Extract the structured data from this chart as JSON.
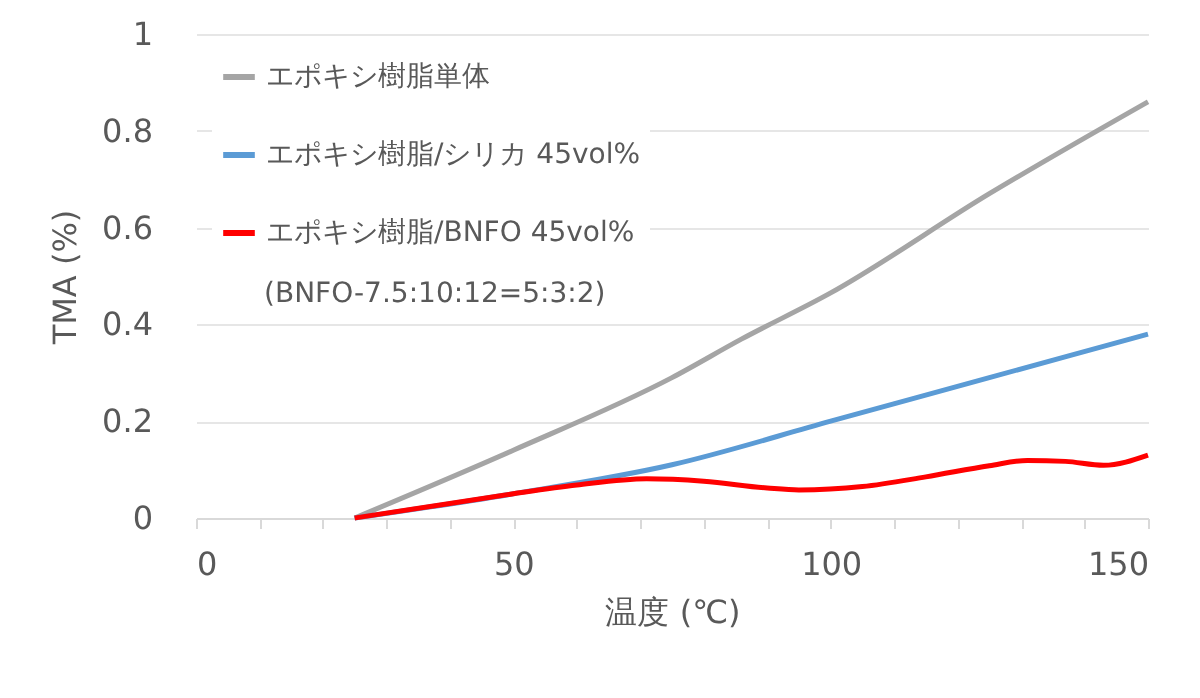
{
  "chart_data": {
    "type": "line",
    "xlabel": "温度 (℃)",
    "ylabel": "TMA (%)",
    "xlim": [
      0,
      150
    ],
    "ylim": [
      0,
      1
    ],
    "xticks": [
      0,
      {
        "value": 10,
        "label": null
      },
      {
        "value": 20,
        "label": null
      },
      {
        "value": 30,
        "label": null
      },
      {
        "value": 40,
        "label": null
      },
      50,
      {
        "value": 60,
        "label": null
      },
      {
        "value": 70,
        "label": null
      },
      {
        "value": 80,
        "label": null
      },
      {
        "value": 90,
        "label": null
      },
      100,
      {
        "value": 110,
        "label": null
      },
      {
        "value": 120,
        "label": null
      },
      {
        "value": 130,
        "label": null
      },
      {
        "value": 140,
        "label": null
      },
      150
    ],
    "yticks": [
      0,
      0.2,
      0.4,
      0.6,
      0.8,
      1
    ],
    "grid": "y",
    "legend": "top left",
    "annotations": [
      "(BNFO-7.5:10:12=5:3:2)"
    ],
    "series": [
      {
        "name": "エポキシ樹脂単体",
        "color": "#a5a5a5",
        "x": [
          25,
          50,
          75,
          86,
          100,
          125,
          150
        ],
        "values": [
          0,
          0.14,
          0.29,
          0.37,
          0.465,
          0.67,
          0.86
        ]
      },
      {
        "name": "エポキシ樹脂/シリカ 45vol%",
        "color": "#5b9bd5",
        "x": [
          25,
          50,
          75,
          100,
          125,
          150
        ],
        "values": [
          0,
          0.05,
          0.11,
          0.2,
          0.29,
          0.38
        ]
      },
      {
        "name": "エポキシ樹脂/BNFO 45vol%",
        "color": "#ff0000",
        "x": [
          25,
          40,
          50,
          60,
          71,
          80,
          90,
          95,
          105,
          115,
          125,
          131,
          137,
          143,
          150
        ],
        "values": [
          0,
          0.03,
          0.05,
          0.068,
          0.081,
          0.076,
          0.062,
          0.058,
          0.065,
          0.085,
          0.108,
          0.119,
          0.117,
          0.109,
          0.13
        ]
      }
    ]
  }
}
